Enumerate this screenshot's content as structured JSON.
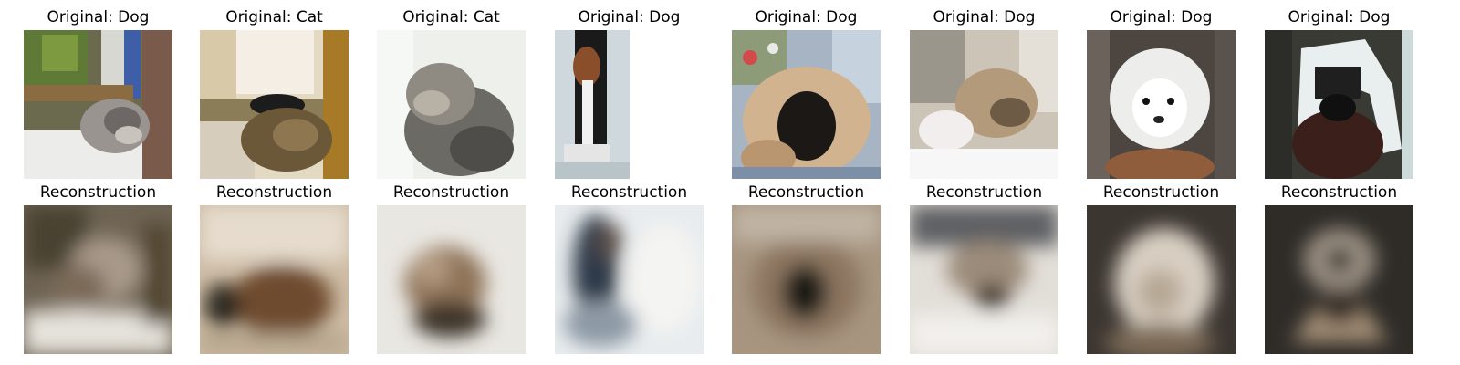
{
  "figure": {
    "columns": [
      {
        "label": "Dog",
        "original_title": "Original: Dog",
        "reconstruction_title": "Reconstruction"
      },
      {
        "label": "Cat",
        "original_title": "Original: Cat",
        "reconstruction_title": "Reconstruction"
      },
      {
        "label": "Cat",
        "original_title": "Original: Cat",
        "reconstruction_title": "Reconstruction"
      },
      {
        "label": "Dog",
        "original_title": "Original: Dog",
        "reconstruction_title": "Reconstruction"
      },
      {
        "label": "Dog",
        "original_title": "Original: Dog",
        "reconstruction_title": "Reconstruction"
      },
      {
        "label": "Dog",
        "original_title": "Original: Dog",
        "reconstruction_title": "Reconstruction"
      },
      {
        "label": "Dog",
        "original_title": "Original: Dog",
        "reconstruction_title": "Reconstruction"
      },
      {
        "label": "Dog",
        "original_title": "Original: Dog",
        "reconstruction_title": "Reconstruction"
      }
    ]
  }
}
